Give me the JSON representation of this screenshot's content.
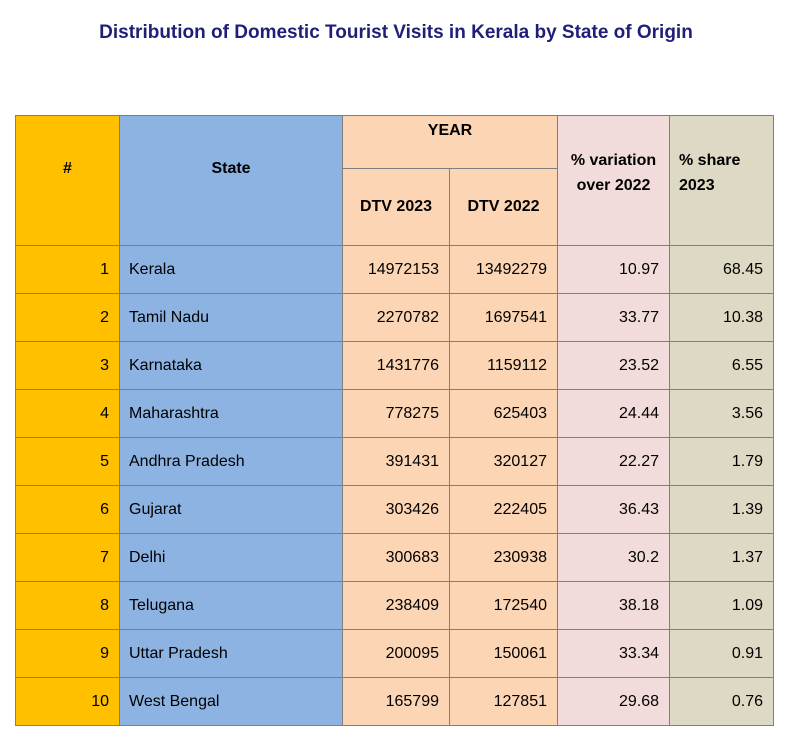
{
  "title": "Distribution of Domestic Tourist Visits in Kerala by State of Origin",
  "table": {
    "headers": {
      "num": "#",
      "state": "State",
      "year": "YEAR",
      "dtv2023": "DTV 2023",
      "dtv2022": "DTV 2022",
      "variation_line1": "% variation",
      "variation_line2": "over 2022",
      "share_line1": "% share",
      "share_line2": "2023"
    },
    "rows": [
      {
        "num": "1",
        "state": "Kerala",
        "dtv2023": "14972153",
        "dtv2022": "13492279",
        "variation": "10.97",
        "share": "68.45"
      },
      {
        "num": "2",
        "state": "Tamil Nadu",
        "dtv2023": "2270782",
        "dtv2022": "1697541",
        "variation": "33.77",
        "share": "10.38"
      },
      {
        "num": "3",
        "state": "Karnataka",
        "dtv2023": "1431776",
        "dtv2022": "1159112",
        "variation": "23.52",
        "share": "6.55"
      },
      {
        "num": "4",
        "state": "Maharashtra",
        "dtv2023": "778275",
        "dtv2022": "625403",
        "variation": "24.44",
        "share": "3.56"
      },
      {
        "num": "5",
        "state": "Andhra Pradesh",
        "dtv2023": "391431",
        "dtv2022": "320127",
        "variation": "22.27",
        "share": "1.79"
      },
      {
        "num": "6",
        "state": "Gujarat",
        "dtv2023": "303426",
        "dtv2022": "222405",
        "variation": "36.43",
        "share": "1.39"
      },
      {
        "num": "7",
        "state": "Delhi",
        "dtv2023": "300683",
        "dtv2022": "230938",
        "variation": "30.2",
        "share": "1.37"
      },
      {
        "num": "8",
        "state": "Telugana",
        "dtv2023": "238409",
        "dtv2022": "172540",
        "variation": "38.18",
        "share": "1.09"
      },
      {
        "num": "9",
        "state": "Uttar Pradesh",
        "dtv2023": "200095",
        "dtv2022": "150061",
        "variation": "33.34",
        "share": "0.91"
      },
      {
        "num": "10",
        "state": "West Bengal",
        "dtv2023": "165799",
        "dtv2022": "127851",
        "variation": "29.68",
        "share": "0.76"
      }
    ]
  },
  "colors": {
    "title": "#1f1f7a",
    "num_column": "#ffc000",
    "state_column": "#8db3e2",
    "dtv_columns": "#fcd5b4",
    "variation_column": "#f2dcdb",
    "share_column": "#ddd9c4"
  }
}
